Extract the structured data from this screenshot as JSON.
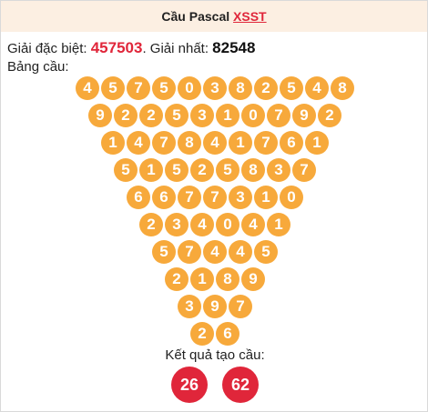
{
  "header": {
    "title": "Cầu Pascal",
    "link_text": "XSST"
  },
  "prizes": {
    "special_label": "Giải đặc biệt:",
    "special_value": "457503",
    "first_label": ". Giải nhất:",
    "first_value": "82548"
  },
  "board_label": "Bảng cầu:",
  "pyramid": [
    [
      "4",
      "5",
      "7",
      "5",
      "0",
      "3",
      "8",
      "2",
      "5",
      "4",
      "8"
    ],
    [
      "9",
      "2",
      "2",
      "5",
      "3",
      "1",
      "0",
      "7",
      "9",
      "2"
    ],
    [
      "1",
      "4",
      "7",
      "8",
      "4",
      "1",
      "7",
      "6",
      "1"
    ],
    [
      "5",
      "1",
      "5",
      "2",
      "5",
      "8",
      "3",
      "7"
    ],
    [
      "6",
      "6",
      "7",
      "7",
      "3",
      "1",
      "0"
    ],
    [
      "2",
      "3",
      "4",
      "0",
      "4",
      "1"
    ],
    [
      "5",
      "7",
      "4",
      "4",
      "5"
    ],
    [
      "2",
      "1",
      "8",
      "9"
    ],
    [
      "3",
      "9",
      "7"
    ],
    [
      "2",
      "6"
    ]
  ],
  "result_label": "Kết quả tạo cầu:",
  "results": [
    "26",
    "62"
  ]
}
